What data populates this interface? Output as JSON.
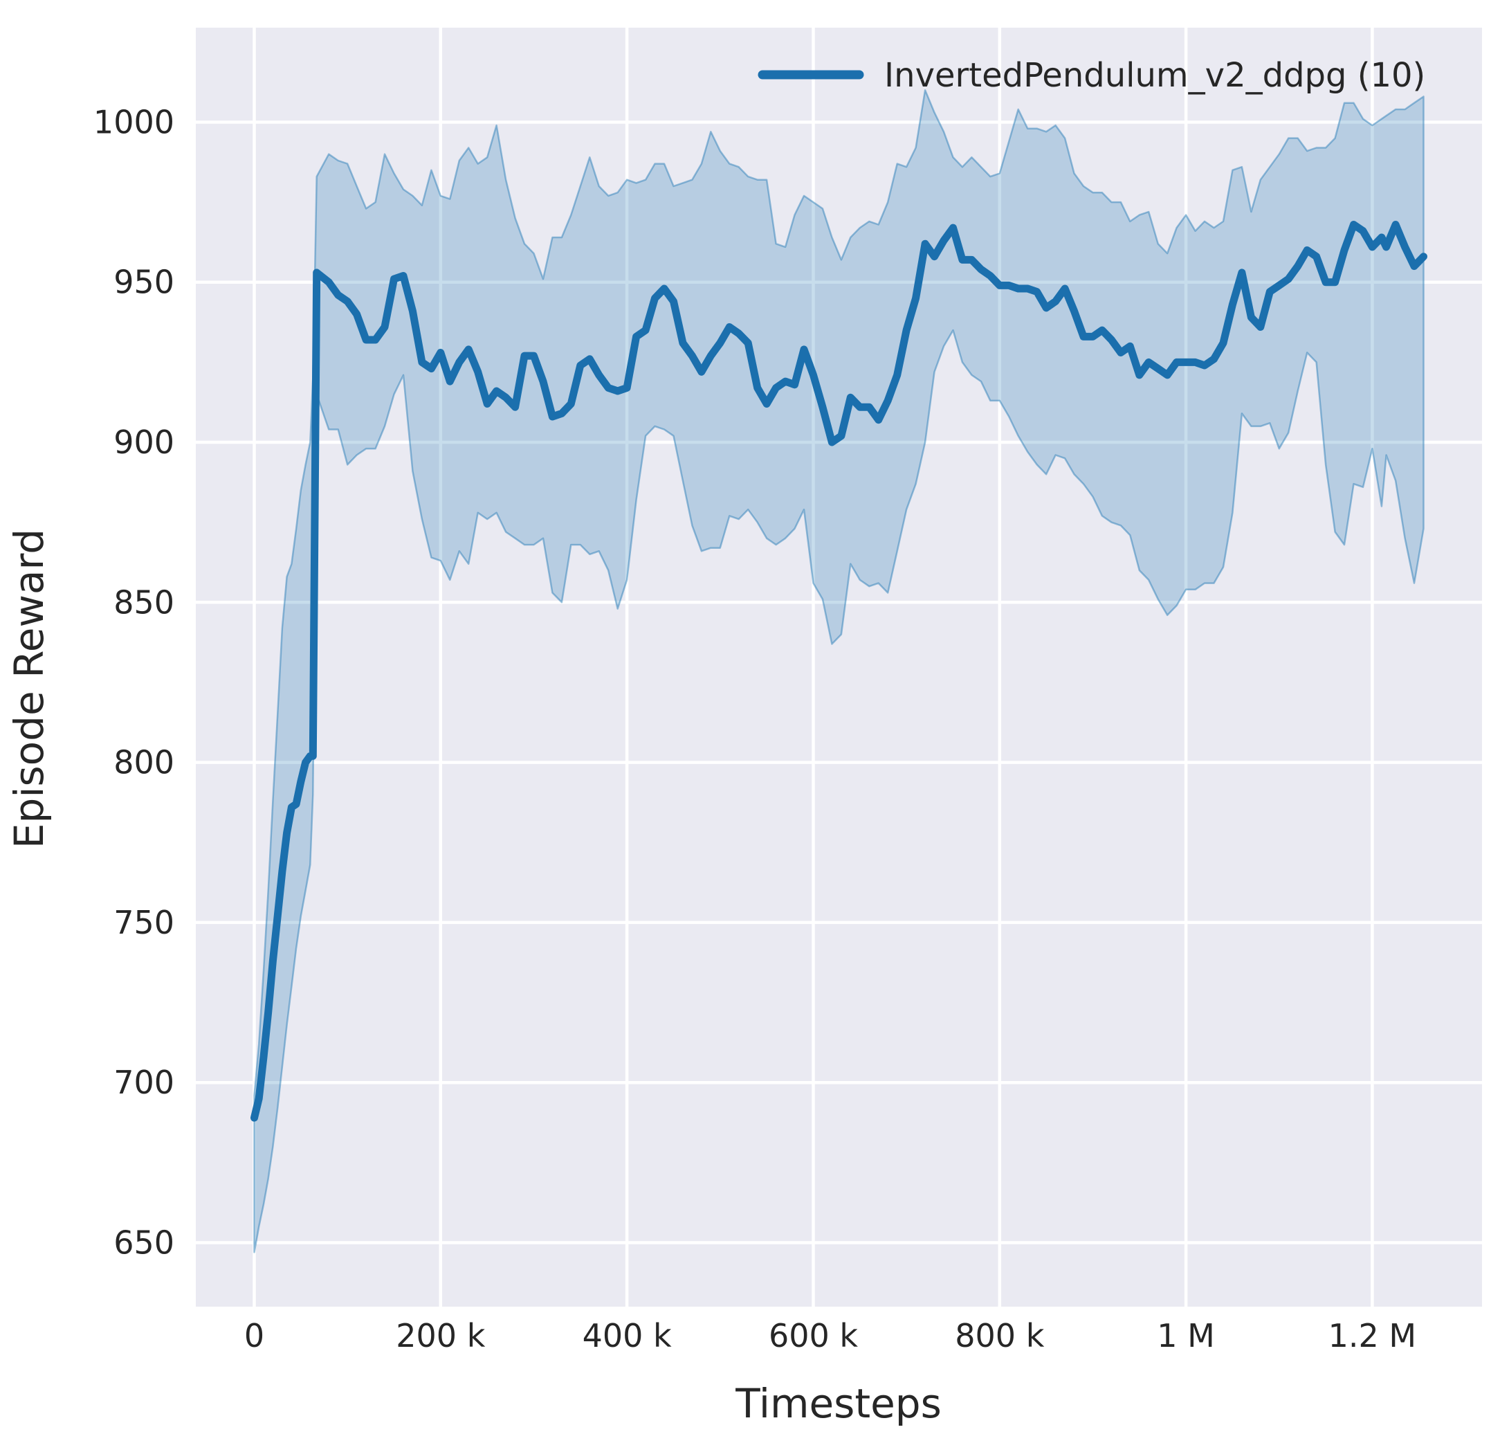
{
  "chart_data": {
    "type": "line",
    "title": "",
    "xlabel": "Timesteps",
    "ylabel": "Episode Reward",
    "grid": true,
    "legend_position": "upper right",
    "xlim": [
      -62750,
      1317750
    ],
    "ylim": [
      630,
      1029.5
    ],
    "x_ticks": [
      {
        "value": 0,
        "label": "0"
      },
      {
        "value": 200000,
        "label": "200 k"
      },
      {
        "value": 400000,
        "label": "400 k"
      },
      {
        "value": 600000,
        "label": "600 k"
      },
      {
        "value": 800000,
        "label": "800 k"
      },
      {
        "value": 1000000,
        "label": "1 M"
      },
      {
        "value": 1200000,
        "label": "1.2 M"
      }
    ],
    "y_ticks": [
      {
        "value": 650,
        "label": "650"
      },
      {
        "value": 700,
        "label": "700"
      },
      {
        "value": 750,
        "label": "750"
      },
      {
        "value": 800,
        "label": "800"
      },
      {
        "value": 850,
        "label": "850"
      },
      {
        "value": 900,
        "label": "900"
      },
      {
        "value": 950,
        "label": "950"
      },
      {
        "value": 1000,
        "label": "1000"
      }
    ],
    "colors": {
      "figure_background": "#ffffff",
      "axes_background": "#eaeaf2",
      "gridline": "#ffffff",
      "text": "#262626",
      "accent": "#1b6fad"
    },
    "series": [
      {
        "name": "InvertedPendulum_v2_ddpg (10)",
        "color": "#1b6fad",
        "band_fill": "rgba(31,119,180,0.25)",
        "band_edge": "rgba(31,119,180,0.45)",
        "x": [
          0,
          5000,
          10000,
          15000,
          20000,
          25000,
          30000,
          35000,
          40000,
          45000,
          50000,
          55000,
          60000,
          63000,
          67000,
          80000,
          90000,
          100000,
          110000,
          120000,
          130000,
          140000,
          150000,
          160000,
          170000,
          180000,
          190000,
          200000,
          210000,
          220000,
          230000,
          240000,
          250000,
          260000,
          270000,
          280000,
          290000,
          300000,
          310000,
          320000,
          330000,
          340000,
          350000,
          360000,
          370000,
          380000,
          390000,
          400000,
          410000,
          420000,
          430000,
          440000,
          450000,
          460000,
          470000,
          480000,
          490000,
          500000,
          510000,
          520000,
          530000,
          540000,
          550000,
          560000,
          570000,
          580000,
          590000,
          600000,
          610000,
          620000,
          630000,
          640000,
          650000,
          660000,
          670000,
          680000,
          690000,
          700000,
          710000,
          720000,
          730000,
          740000,
          750000,
          760000,
          770000,
          780000,
          790000,
          800000,
          810000,
          820000,
          830000,
          840000,
          850000,
          860000,
          870000,
          880000,
          890000,
          900000,
          910000,
          920000,
          930000,
          940000,
          950000,
          960000,
          970000,
          980000,
          990000,
          1000000,
          1010000,
          1020000,
          1030000,
          1040000,
          1050000,
          1060000,
          1070000,
          1080000,
          1090000,
          1100000,
          1110000,
          1120000,
          1130000,
          1140000,
          1150000,
          1160000,
          1170000,
          1180000,
          1190000,
          1200000,
          1210000,
          1215000,
          1225000,
          1235000,
          1245000,
          1255000
        ],
        "mean": [
          689,
          695,
          708,
          722,
          738,
          752,
          766,
          778,
          786,
          787,
          794,
          800,
          802,
          802,
          953,
          950,
          946,
          944,
          940,
          932,
          932,
          936,
          951,
          952,
          941,
          925,
          923,
          928,
          919,
          925,
          929,
          922,
          912,
          916,
          914,
          911,
          927,
          927,
          919,
          908,
          909,
          912,
          924,
          926,
          921,
          917,
          916,
          917,
          933,
          935,
          945,
          948,
          944,
          931,
          927,
          922,
          927,
          931,
          936,
          934,
          931,
          917,
          912,
          917,
          919,
          918,
          929,
          921,
          911,
          900,
          902,
          914,
          911,
          911,
          907,
          913,
          921,
          935,
          945,
          962,
          958,
          963,
          967,
          957,
          957,
          954,
          952,
          949,
          949,
          948,
          948,
          947,
          942,
          944,
          948,
          941,
          933,
          933,
          935,
          932,
          928,
          930,
          921,
          925,
          923,
          921,
          925,
          925,
          925,
          924,
          926,
          931,
          943,
          953,
          939,
          936,
          947,
          949,
          951,
          955,
          960,
          958,
          950,
          950,
          960,
          968,
          966,
          961,
          964,
          961,
          968,
          961,
          955,
          958
        ],
        "band_low": [
          647,
          655,
          662,
          670,
          680,
          692,
          705,
          718,
          730,
          742,
          752,
          760,
          768,
          790,
          915,
          904,
          904,
          893,
          896,
          898,
          898,
          905,
          915,
          921,
          891,
          876,
          864,
          863,
          857,
          866,
          862,
          878,
          876,
          878,
          872,
          870,
          868,
          868,
          870,
          853,
          850,
          868,
          868,
          865,
          866,
          860,
          848,
          857,
          882,
          902,
          905,
          904,
          902,
          888,
          874,
          866,
          867,
          867,
          877,
          876,
          879,
          875,
          870,
          868,
          870,
          873,
          879,
          856,
          851,
          837,
          840,
          862,
          857,
          855,
          856,
          853,
          866,
          879,
          887,
          900,
          922,
          930,
          935,
          925,
          921,
          919,
          913,
          913,
          908,
          902,
          897,
          893,
          890,
          896,
          895,
          890,
          887,
          883,
          877,
          875,
          874,
          871,
          860,
          857,
          851,
          846,
          849,
          854,
          854,
          856,
          856,
          861,
          878,
          909,
          905,
          905,
          906,
          898,
          903,
          916,
          928,
          925,
          893,
          872,
          868,
          887,
          886,
          898,
          880,
          896,
          888,
          870,
          856,
          873
        ],
        "band_high": [
          696,
          712,
          735,
          760,
          788,
          815,
          842,
          858,
          862,
          873,
          885,
          893,
          900,
          920,
          983,
          990,
          988,
          987,
          980,
          973,
          975,
          990,
          984,
          979,
          977,
          974,
          985,
          977,
          976,
          988,
          992,
          987,
          989,
          999,
          982,
          970,
          962,
          959,
          951,
          964,
          964,
          971,
          980,
          989,
          980,
          977,
          978,
          982,
          981,
          982,
          987,
          987,
          980,
          981,
          982,
          987,
          997,
          991,
          987,
          986,
          983,
          982,
          982,
          962,
          961,
          971,
          977,
          975,
          973,
          964,
          957,
          964,
          967,
          969,
          968,
          975,
          987,
          986,
          992,
          1010,
          1003,
          997,
          989,
          986,
          989,
          986,
          983,
          984,
          994,
          1004,
          998,
          998,
          997,
          999,
          995,
          984,
          980,
          978,
          978,
          975,
          975,
          969,
          971,
          972,
          962,
          959,
          967,
          971,
          966,
          969,
          967,
          969,
          985,
          986,
          972,
          982,
          986,
          990,
          995,
          995,
          991,
          992,
          992,
          995,
          1006,
          1006,
          1001,
          999,
          1001,
          1002,
          1004,
          1004,
          1006,
          1008
        ]
      }
    ]
  }
}
